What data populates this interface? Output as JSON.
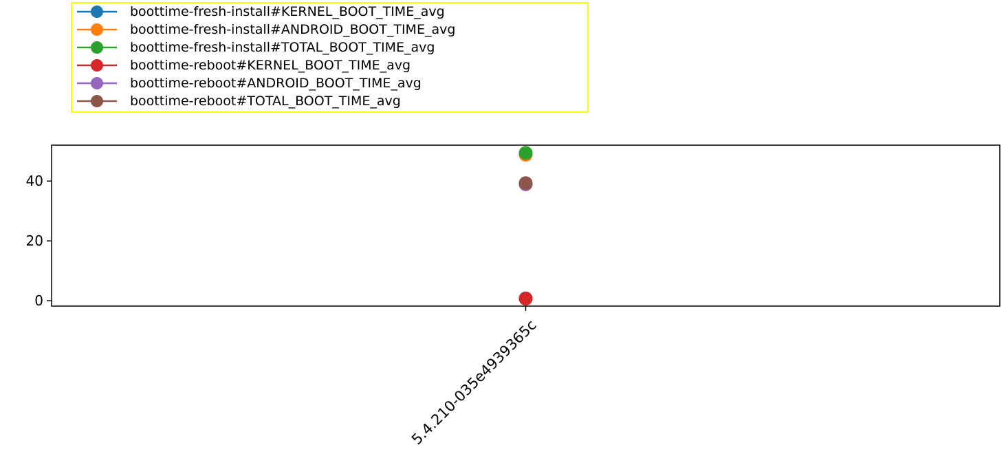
{
  "chart_data": {
    "type": "line",
    "categories": [
      "5.4.210-035e4939365c"
    ],
    "series": [
      {
        "name": "boottime-fresh-install#KERNEL_BOOT_TIME_avg",
        "values": [
          0.8
        ],
        "color": "#1f77b4"
      },
      {
        "name": "boottime-fresh-install#ANDROID_BOOT_TIME_avg",
        "values": [
          48.8
        ],
        "color": "#ff7f0e"
      },
      {
        "name": "boottime-fresh-install#TOTAL_BOOT_TIME_avg",
        "values": [
          49.4
        ],
        "color": "#2ca02c"
      },
      {
        "name": "boottime-reboot#KERNEL_BOOT_TIME_avg",
        "values": [
          0.7
        ],
        "color": "#d62728"
      },
      {
        "name": "boottime-reboot#ANDROID_BOOT_TIME_avg",
        "values": [
          38.9
        ],
        "color": "#9467bd"
      },
      {
        "name": "boottime-reboot#TOTAL_BOOT_TIME_avg",
        "values": [
          39.3
        ],
        "color": "#8c564b"
      }
    ],
    "ylim": [
      -1.8,
      52
    ],
    "yticks": [
      "0",
      "20",
      "40"
    ],
    "ytick_values": [
      0,
      20,
      40
    ],
    "grid": false,
    "legend_position": "top-left, above plot",
    "legend_edge_color": "#ffff00",
    "marker": "circle"
  }
}
